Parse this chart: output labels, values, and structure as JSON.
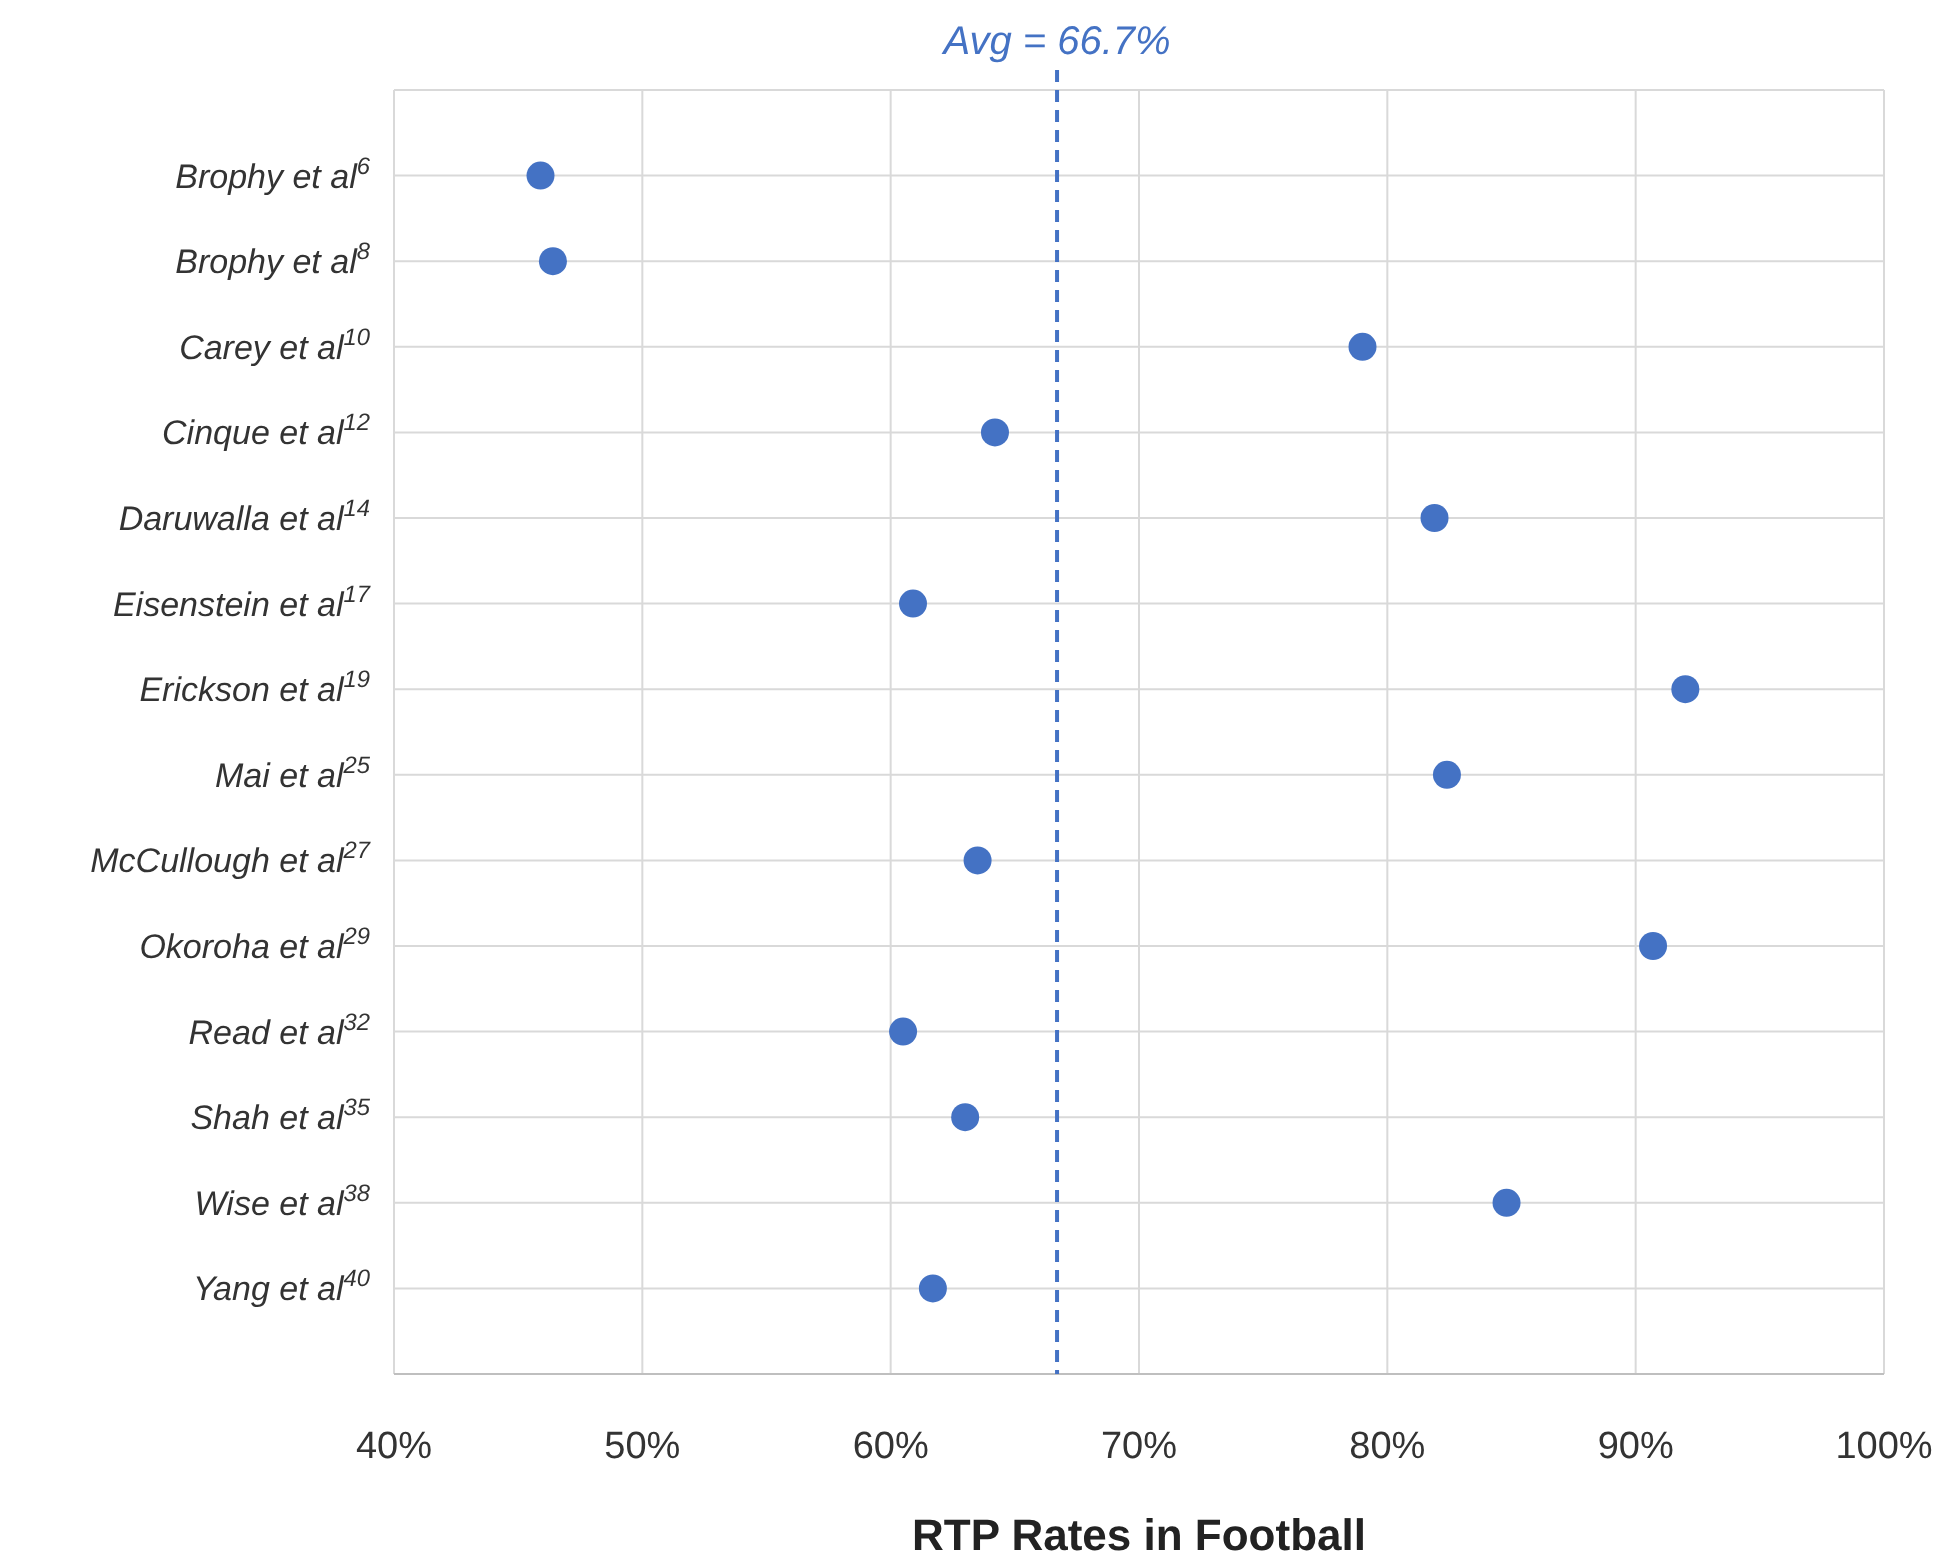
{
  "chart_data": {
    "type": "scatter",
    "orientation": "horizontal",
    "xlabel": "RTP Rates in Football",
    "categories": [
      "Brophy et al$^{6}$",
      "Brophy et al$^{8}$",
      "Carey et al$^{10}$",
      "Cinque et al$^{12}$",
      "Daruwalla et al$^{14}$",
      "Eisenstein et al$^{17}$",
      "Erickson et al$^{19}$",
      "Mai et al$^{25}$",
      "McCullough et al$^{27}$",
      "Okoroha et al$^{29}$",
      "Read et al$^{32}$",
      "Shah et al$^{35}$",
      "Wise et al$^{38}$",
      "Yang et al$^{40}$"
    ],
    "series": [
      {
        "color": "#4472c4",
        "values": [
          45.9,
          46.4,
          79.0,
          64.2,
          81.9,
          60.9,
          92.0,
          82.4,
          63.5,
          90.7,
          60.5,
          63.0,
          84.8,
          61.7
        ]
      }
    ],
    "xlim": [
      40,
      100
    ],
    "xticks": [
      {
        "value": 40,
        "label": "40%"
      },
      {
        "value": 50,
        "label": "50%"
      },
      {
        "value": 60,
        "label": "60%"
      },
      {
        "value": 70,
        "label": "70%"
      },
      {
        "value": 80,
        "label": "80%"
      },
      {
        "value": 90,
        "label": "90%"
      },
      {
        "value": 100,
        "label": "100%"
      }
    ],
    "ref_lines": [
      {
        "axis": "x",
        "value": 66.7,
        "label": "Avg = 66.7%",
        "color": "#4472c4",
        "line_style": "dashed"
      }
    ],
    "grid": true,
    "marker": "circle"
  }
}
